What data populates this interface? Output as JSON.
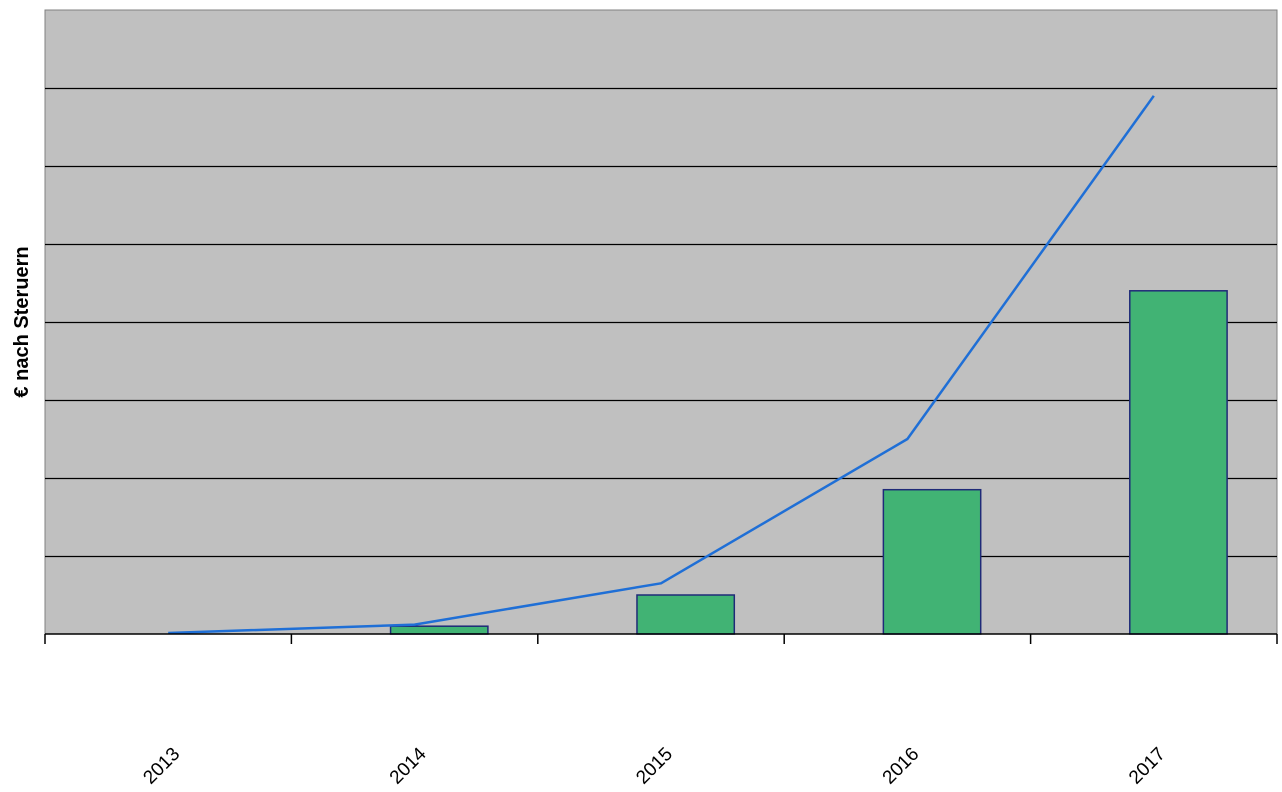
{
  "chart_data": {
    "type": "bar",
    "title": "",
    "xlabel": "",
    "ylabel": "€ nach Steruern",
    "categories": [
      "2013",
      "2014",
      "2015",
      "2016",
      "2017"
    ],
    "series": [
      {
        "type": "bar",
        "values": [
          0,
          1,
          5,
          18.5,
          44
        ]
      },
      {
        "type": "line",
        "values": [
          0,
          1.2,
          6.5,
          25,
          69
        ]
      }
    ],
    "ylim": [
      0,
      80
    ],
    "y_gridlines": [
      10,
      20,
      30,
      40,
      50,
      60,
      70
    ],
    "y_tick_labels_shown": false,
    "grid": true,
    "legend": "none",
    "colors": {
      "plot_background": "#c0c0c0",
      "bar_fill": "#41b374",
      "bar_stroke": "#1f2a78",
      "line": "#1f6fd6",
      "gridline": "#000000"
    }
  }
}
